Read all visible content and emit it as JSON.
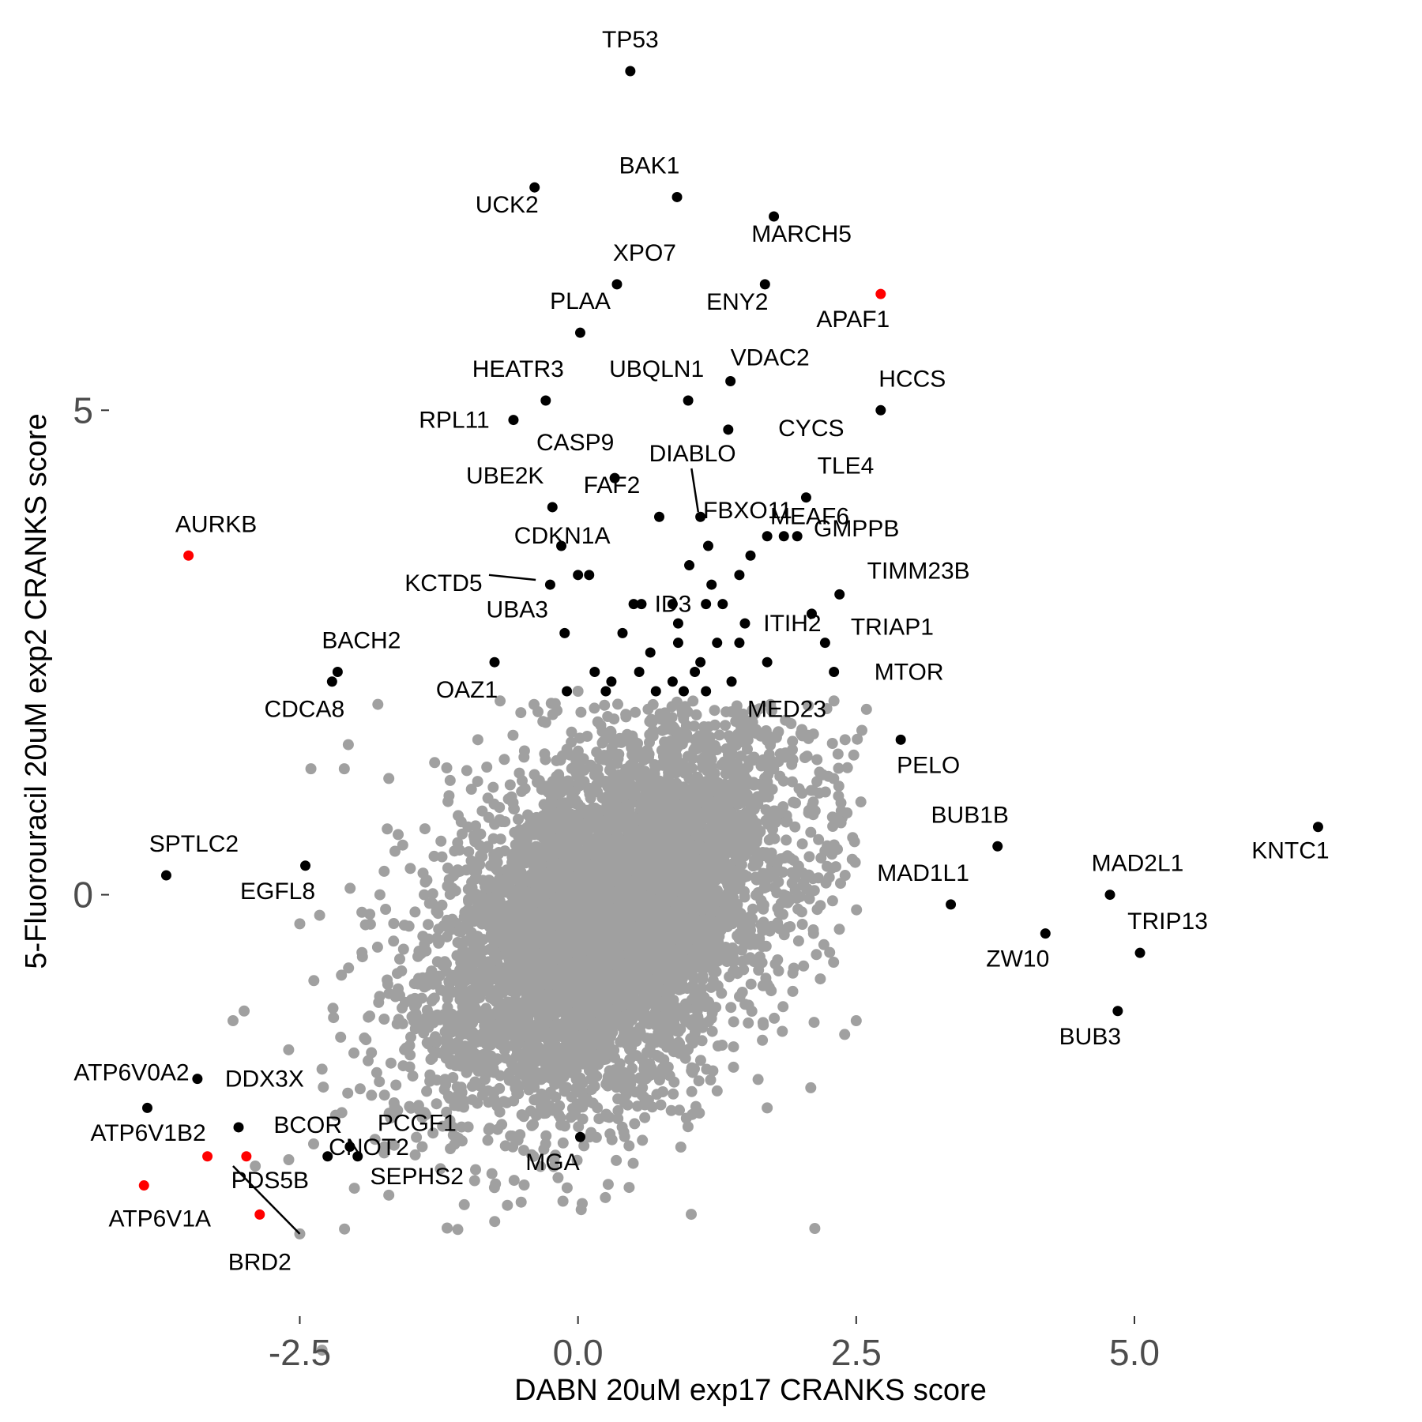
{
  "chart_data": {
    "type": "scatter",
    "xlabel": "DABN 20uM exp17 CRANKS score",
    "ylabel": "5-Fluorouracil 20uM exp2 CRANKS score",
    "xlim": [
      -4.2,
      7.3
    ],
    "ylim": [
      -4.3,
      8.5
    ],
    "x_ticks": [
      {
        "value": -2.5,
        "label": "-2.5"
      },
      {
        "value": 0.0,
        "label": "0.0"
      },
      {
        "value": 2.5,
        "label": "2.5"
      },
      {
        "value": 5.0,
        "label": "5.0"
      }
    ],
    "y_ticks": [
      {
        "value": 0,
        "label": "0"
      },
      {
        "value": 5,
        "label": "5"
      }
    ],
    "grid": false,
    "colors": {
      "background": "#ffffff",
      "hit": "#000000",
      "highlight": "#ff0000",
      "other": "#a0a0a0"
    },
    "background_cloud": {
      "description_role": "gray unlabeled genes",
      "color": "#a0a0a0",
      "correlation": 0.45,
      "center": [
        0.3,
        -0.2
      ],
      "n": 6000
    },
    "gray_outliers": [
      [
        -1.7,
        1.2
      ],
      [
        -2.4,
        1.3
      ],
      [
        -2.3,
        -1.8
      ],
      [
        -2.9,
        -2.8
      ],
      [
        -3.0,
        -1.2
      ],
      [
        -2.6,
        -1.6
      ],
      [
        -2.5,
        -3.5
      ],
      [
        -2.3,
        -4.7
      ],
      [
        -1.7,
        -3.1
      ],
      [
        0.0,
        2.1
      ],
      [
        -0.7,
        2.0
      ],
      [
        -0.9,
        1.6
      ],
      [
        2.3,
        2.0
      ],
      [
        2.4,
        1.6
      ],
      [
        2.4,
        0.2
      ],
      [
        2.5,
        -1.3
      ],
      [
        1.7,
        -2.2
      ],
      [
        -1.4,
        -2.3
      ],
      [
        -1.4,
        -2.6
      ],
      [
        -0.4,
        -2.7
      ],
      [
        0.6,
        -2.3
      ],
      [
        -3.1,
        -1.3
      ],
      [
        -2.5,
        -0.3
      ],
      [
        -2.1,
        1.3
      ]
    ],
    "series": [
      {
        "color": "#000000",
        "points": [
          {
            "label": "TP53",
            "x": 0.47,
            "y": 8.5
          },
          {
            "label": "BAK1",
            "x": 0.89,
            "y": 7.2
          },
          {
            "label": "UCK2",
            "x": -0.39,
            "y": 7.3
          },
          {
            "label": "MARCH5",
            "x": 1.76,
            "y": 7.0
          },
          {
            "label": "XPO7",
            "x": 0.35,
            "y": 6.3
          },
          {
            "label": "ENY2",
            "x": 1.68,
            "y": 6.3
          },
          {
            "label": "PLAA",
            "x": 0.02,
            "y": 5.8
          },
          {
            "label": "HEATR3",
            "x": -0.29,
            "y": 5.1
          },
          {
            "label": "UBQLN1",
            "x": 0.99,
            "y": 5.1
          },
          {
            "label": "VDAC2",
            "x": 1.37,
            "y": 5.3
          },
          {
            "label": "HCCS",
            "x": 2.72,
            "y": 5.0
          },
          {
            "label": "CYCS",
            "x": 1.35,
            "y": 4.8
          },
          {
            "label": "RPL11",
            "x": -0.58,
            "y": 4.9
          },
          {
            "label": "CASP9",
            "x": 0.33,
            "y": 4.3
          },
          {
            "label": "DIABLO",
            "x": 1.1,
            "y": 3.9
          },
          {
            "label": "UBE2K",
            "x": -0.23,
            "y": 4.0
          },
          {
            "label": "FAF2",
            "x": 0.73,
            "y": 3.9
          },
          {
            "label": "FBXO11",
            "x": 1.17,
            "y": 3.6
          },
          {
            "label": "TLE4",
            "x": 2.05,
            "y": 4.1
          },
          {
            "label": "GMPPB",
            "x": 1.97,
            "y": 3.7
          },
          {
            "label": "CDKN1A",
            "x": 0.0,
            "y": 3.3
          },
          {
            "label": "KCTD5",
            "x": -0.25,
            "y": 3.2
          },
          {
            "label": "ID3",
            "x": 0.57,
            "y": 3.0
          },
          {
            "label": "MEAF6",
            "x": 1.55,
            "y": 3.5
          },
          {
            "label": "TIMM23B",
            "x": 2.35,
            "y": 3.1
          },
          {
            "label": "ITIH2",
            "x": 1.5,
            "y": 2.8
          },
          {
            "label": "TRIAP1",
            "x": 2.22,
            "y": 2.6
          },
          {
            "label": "UBA3",
            "x": -0.12,
            "y": 2.7
          },
          {
            "label": "OAZ1",
            "x": -0.75,
            "y": 2.4
          },
          {
            "label": "MTOR",
            "x": 2.3,
            "y": 2.3
          },
          {
            "label": "MED23",
            "x": 1.38,
            "y": 2.2
          },
          {
            "label": "BACH2",
            "x": -2.16,
            "y": 2.3
          },
          {
            "label": "CDCA8",
            "x": -2.21,
            "y": 2.2
          },
          {
            "label": "PELO",
            "x": 2.9,
            "y": 1.6
          },
          {
            "label": "BUB1B",
            "x": 3.77,
            "y": 0.5
          },
          {
            "label": "KNTC1",
            "x": 6.65,
            "y": 0.7
          },
          {
            "label": "MAD1L1",
            "x": 3.35,
            "y": -0.1
          },
          {
            "label": "MAD2L1",
            "x": 4.78,
            "y": 0.0
          },
          {
            "label": "ZW10",
            "x": 4.2,
            "y": -0.4
          },
          {
            "label": "TRIP13",
            "x": 5.05,
            "y": -0.6
          },
          {
            "label": "BUB3",
            "x": 4.85,
            "y": -1.2
          },
          {
            "label": "SPTLC2",
            "x": -3.7,
            "y": 0.2
          },
          {
            "label": "EGFL8",
            "x": -2.45,
            "y": 0.3
          },
          {
            "label": "DDX3X",
            "x": -3.42,
            "y": -1.9
          },
          {
            "label": "ATP6V0A2",
            "x": -3.87,
            "y": -2.2
          },
          {
            "label": "BCOR",
            "x": -2.25,
            "y": -2.7
          },
          {
            "label": "PCGF1",
            "x": -2.05,
            "y": -2.6
          },
          {
            "label": "SEPHS2",
            "x": -1.98,
            "y": -2.7
          },
          {
            "label": "MGA",
            "x": 0.02,
            "y": -2.5
          },
          {
            "label": "CNOT2",
            "x": -3.05,
            "y": -2.4
          }
        ]
      },
      {
        "color": "#ff0000",
        "points": [
          {
            "label": "AURKB",
            "x": -3.5,
            "y": 3.5
          },
          {
            "label": "APAF1",
            "x": 2.72,
            "y": 6.2
          },
          {
            "label": "ATP6V1B2",
            "x": -3.33,
            "y": -2.7
          },
          {
            "label": "PDS5B",
            "x": -2.98,
            "y": -2.7
          },
          {
            "label": "ATP6V1A",
            "x": -3.9,
            "y": -3.0
          },
          {
            "label": "BRD2",
            "x": -2.86,
            "y": -3.3
          }
        ]
      }
    ],
    "extra_black_points": [
      [
        -0.15,
        3.6
      ],
      [
        0.1,
        3.3
      ],
      [
        0.85,
        3.0
      ],
      [
        0.9,
        2.8
      ],
      [
        1.2,
        3.2
      ],
      [
        1.3,
        3.0
      ],
      [
        1.45,
        3.3
      ],
      [
        1.7,
        3.7
      ],
      [
        1.85,
        3.7
      ],
      [
        2.1,
        2.9
      ],
      [
        0.4,
        2.7
      ],
      [
        0.65,
        2.5
      ],
      [
        0.9,
        2.6
      ],
      [
        1.1,
        2.4
      ],
      [
        1.25,
        2.6
      ],
      [
        1.45,
        2.6
      ],
      [
        0.15,
        2.3
      ],
      [
        0.3,
        2.2
      ],
      [
        0.55,
        2.3
      ],
      [
        0.85,
        2.2
      ],
      [
        1.05,
        2.3
      ],
      [
        1.7,
        2.4
      ],
      [
        -0.1,
        2.1
      ],
      [
        0.25,
        2.1
      ],
      [
        0.7,
        2.1
      ],
      [
        0.95,
        2.1
      ],
      [
        1.15,
        2.1
      ],
      [
        1.0,
        3.4
      ],
      [
        1.15,
        3.0
      ],
      [
        0.5,
        3.0
      ]
    ],
    "leader_lines": [
      {
        "from": [
          -0.8,
          3.3
        ],
        "to": [
          -0.38,
          3.25
        ]
      },
      {
        "from": [
          1.02,
          4.4
        ],
        "to": [
          1.08,
          3.95
        ]
      },
      {
        "from": [
          -3.1,
          -2.8
        ],
        "to": [
          -2.5,
          -3.5
        ]
      }
    ],
    "label_offsets_note": "labels placed near their points"
  }
}
